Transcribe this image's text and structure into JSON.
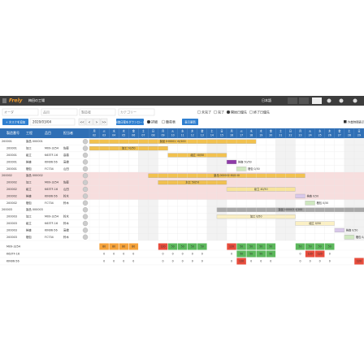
{
  "header": {
    "logo": "Frely",
    "factory": "梅田の工場",
    "language": "日本語"
  },
  "filters": {
    "inputs": [
      "オーダ",
      "品目",
      "製造者",
      "カテゴリー"
    ],
    "status": [
      "未完了",
      "完了"
    ],
    "order": [
      "開始日優先",
      "終了日優先"
    ]
  },
  "toolbar": {
    "add_task": "+ タスクを追加",
    "date": "2020/03/04",
    "nav": [
      "<<",
      "<",
      ">",
      ">>"
    ],
    "download": "製造日程をダウンロード",
    "view": [
      "詳細",
      "簡易表"
    ],
    "update": "表示更新",
    "check": "作業時間表示"
  },
  "table": {
    "headers": [
      "製造番号",
      "工程",
      "品目",
      "担当者"
    ],
    "rows": [
      {
        "cells": [
          "200001",
          "製品 000001",
          "",
          ""
        ],
        "bar": {
          "label": "製品 000001 10/100",
          "start": "02",
          "end": "18",
          "color": "#f2c14e"
        }
      },
      {
        "cells": [
          "200001",
          "加工",
          "M09-3254",
          "佐藤"
        ],
        "bar": {
          "label": "加工 50/50",
          "start": "02",
          "end": "09",
          "color": "#f2c14e"
        }
      },
      {
        "cells": [
          "200001",
          "組立",
          "K63TF-16",
          "高橋"
        ],
        "bar": {
          "label": "組立 50/50",
          "start": "10",
          "end": "15",
          "color": "#f2c14e"
        }
      },
      {
        "cells": [
          "200001",
          "検査",
          "KIN06-56",
          "高橋"
        ],
        "bar": {
          "label": "検査 50/50",
          "start": "16",
          "end": "16",
          "color": "#8e3aa8"
        }
      },
      {
        "cells": [
          "200001",
          "梱包",
          "FC734",
          "山田"
        ],
        "bar": {
          "label": "梱包 0/50",
          "start": "17",
          "end": "17",
          "color": "#cfe8c0"
        }
      },
      {
        "cells": [
          "200002",
          "製品 000002",
          "",
          ""
        ],
        "highlight": true,
        "bar": {
          "label": "製品 000002 80/100",
          "start": "08",
          "end": "23",
          "color": "#f2c14e"
        }
      },
      {
        "cells": [
          "200002",
          "加工",
          "M09-3254",
          "佐藤"
        ],
        "highlight": true,
        "bar": {
          "label": "加工 50/50",
          "start": "09",
          "end": "15",
          "color": "#f2c14e"
        }
      },
      {
        "cells": [
          "200002",
          "組立",
          "K63TF-16",
          "山田"
        ],
        "highlight": true,
        "bar": {
          "label": "組立 40/50",
          "start": "16",
          "end": "22",
          "color": "#f7e49a"
        }
      },
      {
        "cells": [
          "200002",
          "検査",
          "KIN06-56",
          "鈴木"
        ],
        "highlight": true,
        "bar": {
          "label": "検査 0/50",
          "start": "23",
          "end": "23",
          "color": "#d9c8ea"
        }
      },
      {
        "cells": [
          "200002",
          "梱包",
          "FC734",
          "鈴木"
        ],
        "bar": {
          "label": "梱包 0/50",
          "start": "24",
          "end": "24",
          "color": "#cfe8c0"
        }
      },
      {
        "cells": [
          "200003",
          "製品 000003",
          "",
          ""
        ],
        "bar": {
          "label": "製品 000003 0/100",
          "start": "15",
          "end": "29",
          "color": "#a8a8a8"
        }
      },
      {
        "cells": [
          "200003",
          "加工",
          "M09-3254",
          "鈴木"
        ],
        "bar": {
          "label": "加工 0/50",
          "start": "15",
          "end": "22",
          "color": "#fbf0c4"
        }
      },
      {
        "cells": [
          "200003",
          "組立",
          "K63TF-16",
          "鈴木"
        ],
        "bar": {
          "label": "組立 0/50",
          "start": "23",
          "end": "26",
          "color": "#fbf0c4"
        }
      },
      {
        "cells": [
          "200003",
          "検査",
          "KIN06-56",
          "高橋"
        ],
        "bar": {
          "label": "検査 0/50",
          "start": "27",
          "end": "27",
          "color": "#d9c8ea"
        }
      },
      {
        "cells": [
          "200003",
          "梱包",
          "FC734",
          "鈴木"
        ],
        "bar": {
          "label": "梱包 0/50",
          "start": "28",
          "end": "28",
          "color": "#cfe8c0"
        }
      }
    ]
  },
  "gantt": {
    "weekdays": [
      "月",
      "火",
      "水",
      "木",
      "金",
      "土",
      "日",
      "月",
      "火",
      "水",
      "木",
      "金",
      "土",
      "日",
      "月",
      "火",
      "水",
      "木",
      "金",
      "土",
      "日",
      "月",
      "火",
      "水",
      "木",
      "金",
      "土",
      "日"
    ],
    "days": [
      "02",
      "03",
      "04",
      "05",
      "06",
      "07",
      "08",
      "09",
      "10",
      "11",
      "12",
      "13",
      "14",
      "15",
      "16",
      "17",
      "18",
      "19",
      "20",
      "21",
      "22",
      "23",
      "24",
      "25",
      "26",
      "27",
      "28",
      "29"
    ],
    "weekend": [
      false,
      false,
      false,
      false,
      false,
      true,
      true,
      false,
      false,
      false,
      false,
      false,
      true,
      true,
      false,
      false,
      false,
      false,
      false,
      true,
      true,
      false,
      false,
      false,
      false,
      false,
      true,
      true
    ]
  },
  "resources": [
    {
      "name": "M09-3254",
      "values": [
        null,
        80,
        80,
        80,
        80,
        null,
        null,
        120,
        50,
        50,
        50,
        50,
        null,
        null,
        120,
        50,
        50,
        50,
        50,
        null,
        null,
        50,
        50,
        50,
        50,
        null,
        null,
        null
      ],
      "colors": [
        null,
        "#f5a23a",
        "#f5a23a",
        "#f5a23a",
        "#f5a23a",
        null,
        null,
        "#e74c3c",
        "#5cb85c",
        "#5cb85c",
        "#5cb85c",
        "#5cb85c",
        null,
        null,
        "#e74c3c",
        "#5cb85c",
        "#5cb85c",
        "#5cb85c",
        "#5cb85c",
        null,
        null,
        "#5cb85c",
        "#5cb85c",
        "#5cb85c",
        "#5cb85c",
        null,
        null,
        null
      ]
    },
    {
      "name": "K63TF-16",
      "values": [
        null,
        0,
        0,
        0,
        0,
        null,
        null,
        0,
        0,
        0,
        0,
        0,
        null,
        null,
        0,
        50,
        50,
        50,
        50,
        null,
        null,
        0,
        120,
        120,
        0,
        null,
        null,
        null
      ],
      "colors": [
        null,
        null,
        null,
        null,
        null,
        null,
        null,
        null,
        null,
        null,
        null,
        null,
        null,
        null,
        null,
        "#5cb85c",
        "#5cb85c",
        "#5cb85c",
        "#5cb85c",
        null,
        null,
        null,
        "#e74c3c",
        "#e74c3c",
        null,
        null,
        null,
        null
      ]
    },
    {
      "name": "KIN06-56",
      "values": [
        null,
        0,
        0,
        0,
        0,
        null,
        null,
        0,
        0,
        0,
        0,
        0,
        null,
        null,
        0,
        120,
        0,
        0,
        0,
        null,
        null,
        0,
        0,
        0,
        0,
        null,
        null,
        120
      ],
      "colors": [
        null,
        null,
        null,
        null,
        null,
        null,
        null,
        null,
        null,
        null,
        null,
        null,
        null,
        null,
        null,
        "#e74c3c",
        null,
        null,
        null,
        null,
        null,
        null,
        null,
        null,
        null,
        null,
        null,
        "#e74c3c"
      ]
    }
  ]
}
